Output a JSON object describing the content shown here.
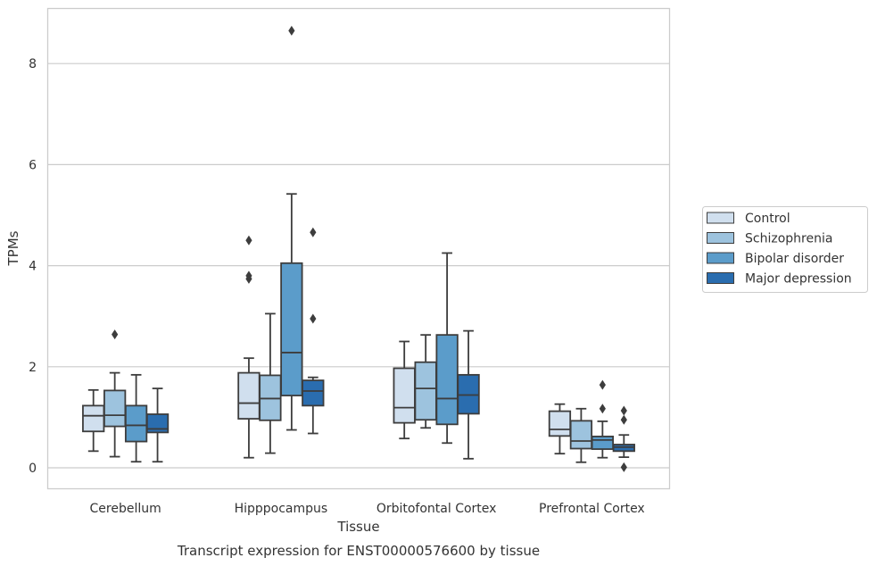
{
  "chart_data": {
    "type": "box",
    "xlabel": "Tissue",
    "ylabel": "TPMs",
    "caption": "Transcript expression for ENST00000576600 by tissue",
    "categories": [
      "Cerebellum",
      "Hipppocampus",
      "Orbitofontal Cortex",
      "Prefrontal Cortex"
    ],
    "yticks": [
      "0",
      "2",
      "4",
      "6",
      "8"
    ],
    "ylim": [
      -0.4,
      9.1
    ],
    "grid": "horizontal",
    "legend_position": "right",
    "series": [
      {
        "name": "Control",
        "color": "#d0dfee",
        "boxes": [
          {
            "whisker_low": 0.33,
            "q1": 0.72,
            "median": 1.03,
            "q3": 1.23,
            "whisker_high": 1.54,
            "outliers": []
          },
          {
            "whisker_low": 0.2,
            "q1": 0.97,
            "median": 1.28,
            "q3": 1.88,
            "whisker_high": 2.17,
            "outliers": [
              3.74,
              3.8,
              4.5
            ]
          },
          {
            "whisker_low": 0.58,
            "q1": 0.89,
            "median": 1.19,
            "q3": 1.97,
            "whisker_high": 2.5,
            "outliers": []
          },
          {
            "whisker_low": 0.28,
            "q1": 0.63,
            "median": 0.76,
            "q3": 1.12,
            "whisker_high": 1.26,
            "outliers": []
          }
        ]
      },
      {
        "name": "Schizophrenia",
        "color": "#9dc3de",
        "boxes": [
          {
            "whisker_low": 0.22,
            "q1": 0.82,
            "median": 1.04,
            "q3": 1.53,
            "whisker_high": 1.88,
            "outliers": [
              2.64
            ]
          },
          {
            "whisker_low": 0.29,
            "q1": 0.94,
            "median": 1.37,
            "q3": 1.83,
            "whisker_high": 3.05,
            "outliers": []
          },
          {
            "whisker_low": 0.79,
            "q1": 0.95,
            "median": 1.57,
            "q3": 2.09,
            "whisker_high": 2.63,
            "outliers": []
          },
          {
            "whisker_low": 0.11,
            "q1": 0.38,
            "median": 0.53,
            "q3": 0.93,
            "whisker_high": 1.17,
            "outliers": []
          }
        ]
      },
      {
        "name": "Bipolar disorder",
        "color": "#5b9cca",
        "boxes": [
          {
            "whisker_low": 0.12,
            "q1": 0.52,
            "median": 0.84,
            "q3": 1.23,
            "whisker_high": 1.84,
            "outliers": []
          },
          {
            "whisker_low": 0.75,
            "q1": 1.43,
            "median": 2.28,
            "q3": 4.05,
            "whisker_high": 5.42,
            "outliers": [
              8.65
            ]
          },
          {
            "whisker_low": 0.49,
            "q1": 0.86,
            "median": 1.37,
            "q3": 2.63,
            "whisker_high": 4.25,
            "outliers": []
          },
          {
            "whisker_low": 0.2,
            "q1": 0.37,
            "median": 0.55,
            "q3": 0.62,
            "whisker_high": 0.92,
            "outliers": [
              1.17,
              1.64
            ]
          }
        ]
      },
      {
        "name": "Major depression",
        "color": "#2a6daf",
        "boxes": [
          {
            "whisker_low": 0.12,
            "q1": 0.7,
            "median": 0.77,
            "q3": 1.06,
            "whisker_high": 1.57,
            "outliers": []
          },
          {
            "whisker_low": 0.68,
            "q1": 1.23,
            "median": 1.52,
            "q3": 1.73,
            "whisker_high": 1.79,
            "outliers": [
              2.95,
              4.66
            ]
          },
          {
            "whisker_low": 0.18,
            "q1": 1.07,
            "median": 1.44,
            "q3": 1.84,
            "whisker_high": 2.71,
            "outliers": []
          },
          {
            "whisker_low": 0.21,
            "q1": 0.33,
            "median": 0.41,
            "q3": 0.46,
            "whisker_high": 0.65,
            "outliers": [
              0.01,
              0.95,
              1.13
            ]
          }
        ]
      }
    ]
  }
}
